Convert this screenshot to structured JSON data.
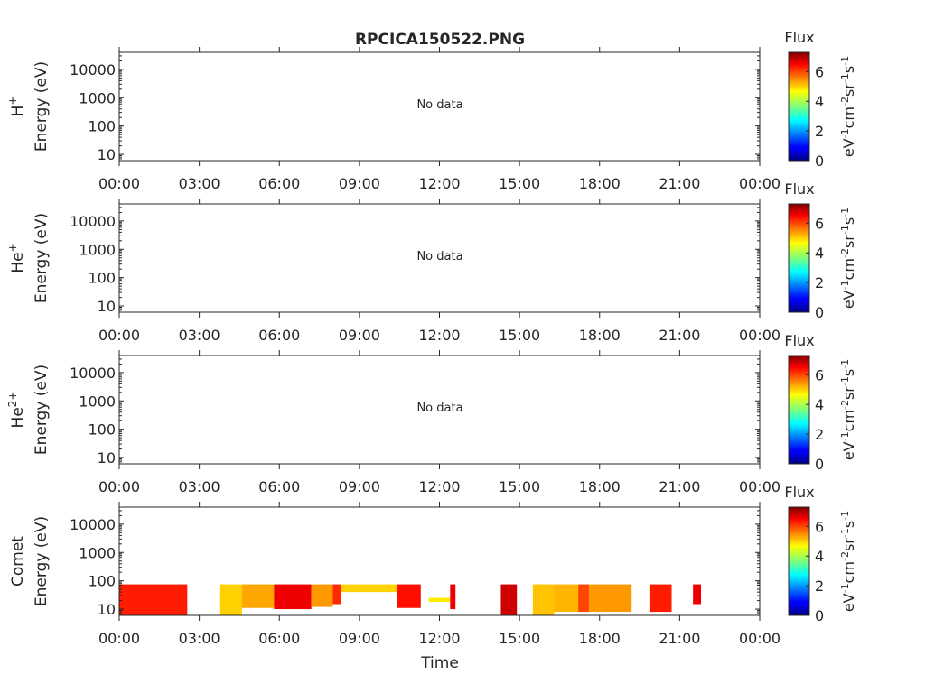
{
  "chart_data": {
    "title": "RPCICA150522.PNG",
    "type": "heatmap",
    "xlabel": "Time",
    "x_unit": "hours",
    "xlim": [
      0,
      24
    ],
    "x_ticks": [
      {
        "value": 0,
        "label": "00:00"
      },
      {
        "value": 3,
        "label": "03:00"
      },
      {
        "value": 6,
        "label": "06:00"
      },
      {
        "value": 9,
        "label": "09:00"
      },
      {
        "value": 12,
        "label": "12:00"
      },
      {
        "value": 15,
        "label": "15:00"
      },
      {
        "value": 18,
        "label": "18:00"
      },
      {
        "value": 21,
        "label": "21:00"
      },
      {
        "value": 24,
        "label": "00:00"
      }
    ],
    "y_scale": "log",
    "ylim": [
      6,
      40000
    ],
    "y_ticks": [
      {
        "value": 10,
        "label": "10"
      },
      {
        "value": 100,
        "label": "100"
      },
      {
        "value": 1000,
        "label": "1000"
      },
      {
        "value": 10000,
        "label": "10000"
      }
    ],
    "colorbar": {
      "title": "Flux",
      "label_main": "eV",
      "label_sup1": "-1",
      "label_main2": "cm",
      "label_sup2": "-2",
      "label_main3": "sr",
      "label_sup3": "-1",
      "label_main4": "s",
      "label_sup4": "-1",
      "range": [
        0,
        7.3
      ],
      "ticks": [
        {
          "value": 0,
          "label": "0"
        },
        {
          "value": 2,
          "label": "2"
        },
        {
          "value": 4,
          "label": "4"
        },
        {
          "value": 6,
          "label": "6"
        }
      ],
      "colormap": "jet"
    },
    "panels": [
      {
        "species": "H",
        "sup": "+",
        "ylabel": "Energy (eV)",
        "has_data": false,
        "message": "No data"
      },
      {
        "species": "He",
        "sup": "+",
        "ylabel": "Energy (eV)",
        "has_data": false,
        "message": "No data"
      },
      {
        "species": "He",
        "sup": "2+",
        "ylabel": "Energy (eV)",
        "has_data": false,
        "message": "No data"
      },
      {
        "species": "Comet",
        "sup": "",
        "ylabel": "Energy (eV)",
        "has_data": true,
        "message": "",
        "segments": [
          {
            "t_start": 0.0,
            "t_end": 2.55,
            "e_low": 6,
            "e_high": 75,
            "flux": 6.3
          },
          {
            "t_start": 3.75,
            "t_end": 4.6,
            "e_low": 6,
            "e_high": 75,
            "flux": 5.0
          },
          {
            "t_start": 4.6,
            "t_end": 5.8,
            "e_low": 11,
            "e_high": 75,
            "flux": 5.3
          },
          {
            "t_start": 5.8,
            "t_end": 7.2,
            "e_low": 10,
            "e_high": 75,
            "flux": 6.6
          },
          {
            "t_start": 7.2,
            "t_end": 8.0,
            "e_low": 12,
            "e_high": 75,
            "flux": 5.4
          },
          {
            "t_start": 8.0,
            "t_end": 8.3,
            "e_low": 15,
            "e_high": 75,
            "flux": 6.2
          },
          {
            "t_start": 8.3,
            "t_end": 10.4,
            "e_low": 40,
            "e_high": 75,
            "flux": 5.0
          },
          {
            "t_start": 10.4,
            "t_end": 11.3,
            "e_low": 11,
            "e_high": 75,
            "flux": 6.4
          },
          {
            "t_start": 11.6,
            "t_end": 12.4,
            "e_low": 18,
            "e_high": 25,
            "flux": 4.8
          },
          {
            "t_start": 12.4,
            "t_end": 12.6,
            "e_low": 10,
            "e_high": 75,
            "flux": 6.6
          },
          {
            "t_start": 14.3,
            "t_end": 14.9,
            "e_low": 6,
            "e_high": 75,
            "flux": 6.8
          },
          {
            "t_start": 15.5,
            "t_end": 16.3,
            "e_low": 6,
            "e_high": 75,
            "flux": 5.1
          },
          {
            "t_start": 16.3,
            "t_end": 17.2,
            "e_low": 8,
            "e_high": 75,
            "flux": 5.2
          },
          {
            "t_start": 17.2,
            "t_end": 17.6,
            "e_low": 8,
            "e_high": 75,
            "flux": 6.0
          },
          {
            "t_start": 17.6,
            "t_end": 19.2,
            "e_low": 8,
            "e_high": 75,
            "flux": 5.4
          },
          {
            "t_start": 19.9,
            "t_end": 20.7,
            "e_low": 8,
            "e_high": 75,
            "flux": 6.3
          },
          {
            "t_start": 21.5,
            "t_end": 21.8,
            "e_low": 15,
            "e_high": 75,
            "flux": 6.6
          }
        ]
      }
    ]
  }
}
